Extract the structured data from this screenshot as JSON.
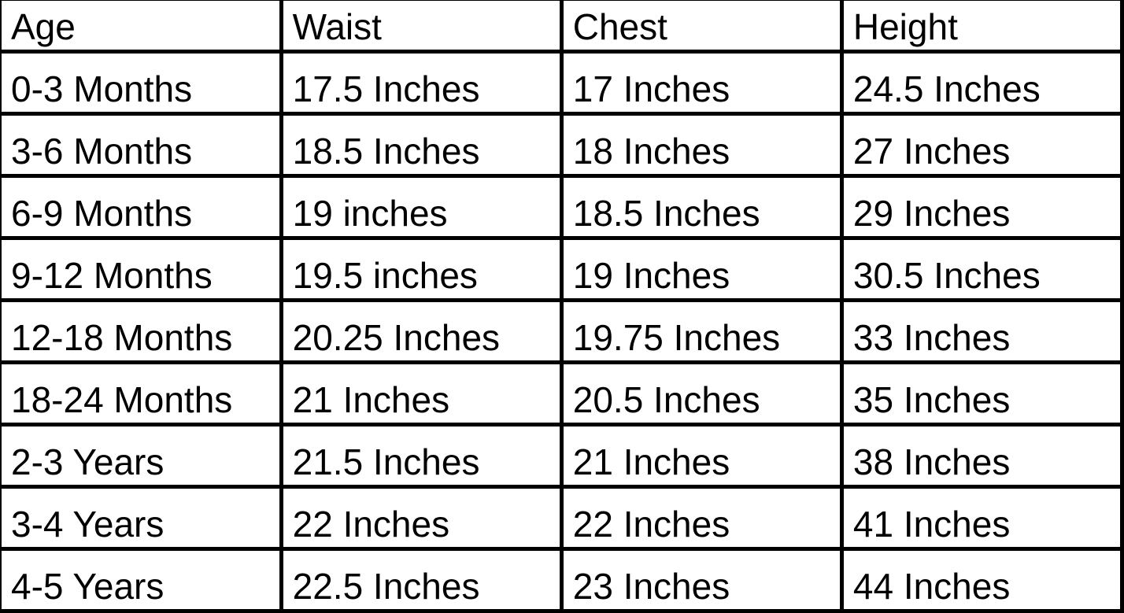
{
  "colors": {
    "border": "#000000",
    "background": "#ffffff",
    "text": "#000000"
  },
  "chart_data": {
    "type": "table",
    "columns": [
      "Age",
      "Waist",
      "Chest",
      "Height"
    ],
    "rows": [
      [
        "0-3 Months",
        "17.5 Inches",
        "17 Inches",
        "24.5 Inches"
      ],
      [
        "3-6 Months",
        "18.5 Inches",
        "18 Inches",
        "27 Inches"
      ],
      [
        "6-9 Months",
        "19 inches",
        "18.5 Inches",
        "29 Inches"
      ],
      [
        "9-12 Months",
        "19.5 inches",
        "19 Inches",
        "30.5 Inches"
      ],
      [
        "12-18 Months",
        "20.25 Inches",
        "19.75 Inches",
        "33 Inches"
      ],
      [
        "18-24 Months",
        "21 Inches",
        "20.5 Inches",
        "35 Inches"
      ],
      [
        "2-3 Years",
        "21.5 Inches",
        "21 Inches",
        "38 Inches"
      ],
      [
        "3-4 Years",
        "22 Inches",
        "22 Inches",
        "41 Inches"
      ],
      [
        "4-5 Years",
        "22.5 Inches",
        "23 Inches",
        "44 Inches"
      ]
    ],
    "categories": [
      "0-3 Months",
      "3-6 Months",
      "6-9 Months",
      "9-12 Months",
      "12-18 Months",
      "18-24 Months",
      "2-3 Years",
      "3-4 Years",
      "4-5 Years"
    ],
    "series": [
      {
        "name": "Waist",
        "unit": "inches",
        "values": [
          17.5,
          18.5,
          19,
          19.5,
          20.25,
          21,
          21.5,
          22,
          22.5
        ]
      },
      {
        "name": "Chest",
        "unit": "inches",
        "values": [
          17,
          18,
          18.5,
          19,
          19.75,
          20.5,
          21,
          22,
          23
        ]
      },
      {
        "name": "Height",
        "unit": "inches",
        "values": [
          24.5,
          27,
          29,
          30.5,
          33,
          35,
          38,
          41,
          44
        ]
      }
    ]
  }
}
